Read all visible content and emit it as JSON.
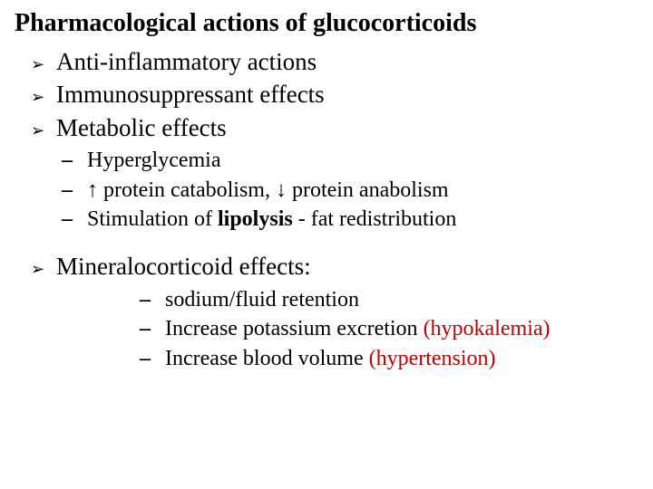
{
  "colors": {
    "text": "#000000",
    "background": "#ffffff",
    "accent": "#c00000"
  },
  "typography": {
    "family": "Times New Roman",
    "title_size_pt": 21,
    "title_weight": "bold",
    "level1_size_pt": 20,
    "level2_size_pt": 18,
    "level3_size_pt": 18
  },
  "bullets": {
    "level1_glyph": "➢",
    "level2_glyph": "–",
    "level3_glyph": "–"
  },
  "title": "Pharmacological actions of glucocorticoids",
  "main_points": [
    "Anti-inflammatory actions",
    "Immunosuppressant effects",
    "Metabolic effects"
  ],
  "metabolic_sub": {
    "item1": "Hyperglycemia",
    "item2": "↑ protein catabolism, ↓ protein anabolism",
    "item3_prefix": "Stimulation of ",
    "item3_bold": "lipolysis",
    "item3_suffix": " - fat redistribution"
  },
  "mineralocorticoid": {
    "heading": "Mineralocorticoid effects:",
    "sub1": " sodium/fluid retention",
    "sub2_text": "Increase potassium excretion ",
    "sub2_paren": "(hypokalemia)",
    "sub3_text": "Increase blood volume ",
    "sub3_paren": "(hypertension)"
  }
}
